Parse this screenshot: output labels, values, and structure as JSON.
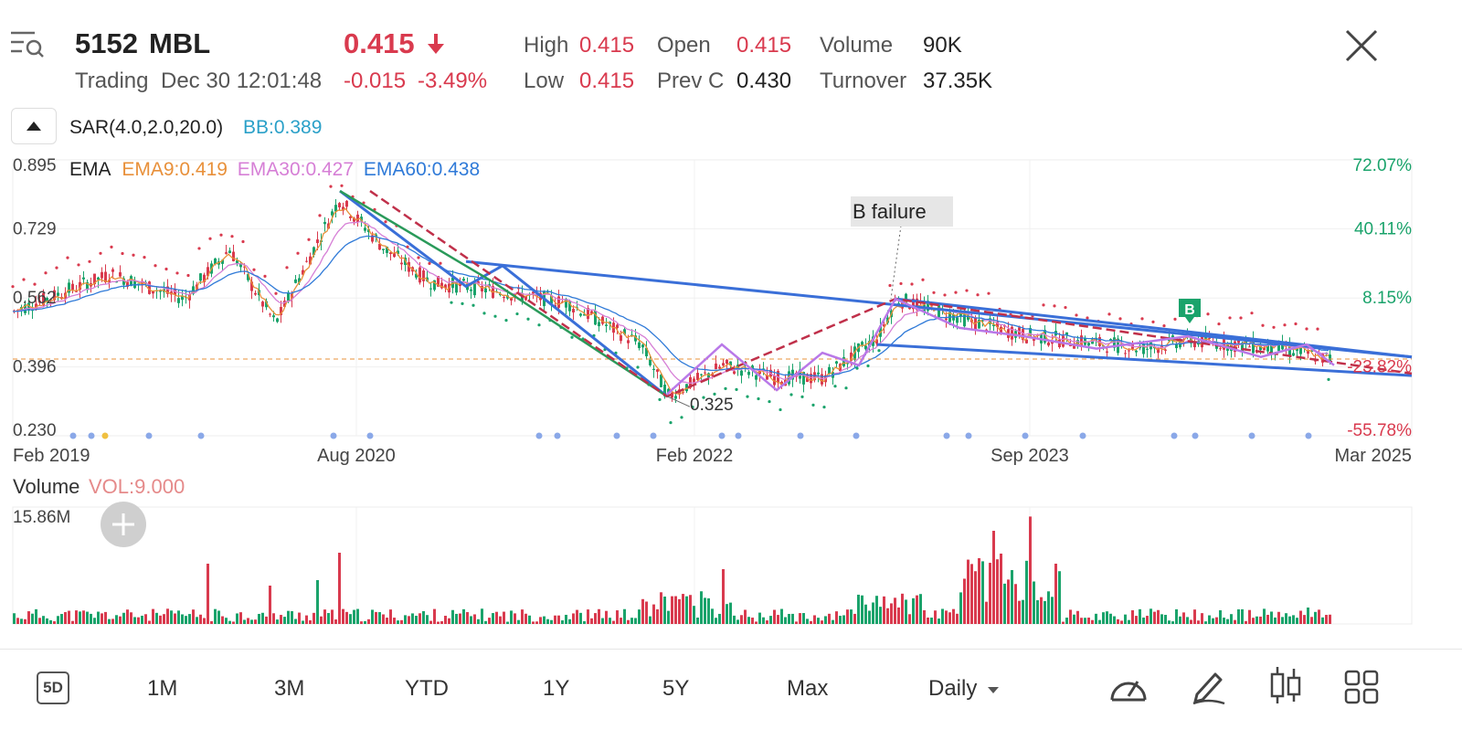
{
  "header": {
    "code": "5152",
    "name": "MBL",
    "price": "0.415",
    "status": "Trading",
    "datetime": "Dec 30 12:01:48",
    "change": "-0.015",
    "change_pct": "-3.49%",
    "high_label": "High",
    "high": "0.415",
    "low_label": "Low",
    "low": "0.415",
    "open_label": "Open",
    "open": "0.415",
    "prevc_label": "Prev C",
    "prevc": "0.430",
    "volume_label": "Volume",
    "volume": "90K",
    "turnover_label": "Turnover",
    "turnover": "37.35K"
  },
  "indicators": {
    "sar": "SAR(4.0,2.0,20.0)",
    "bb": "BB:0.389",
    "ema": "EMA",
    "ema9": "EMA9:0.419",
    "ema30": "EMA30:0.427",
    "ema60": "EMA60:0.438"
  },
  "annotations": {
    "b_failure": "B failure",
    "marker_b": "B",
    "low_point": "0.325"
  },
  "chart_data": {
    "type": "candlestick",
    "price_axis": [
      "0.895",
      "0.729",
      "0.562",
      "0.396",
      "0.230"
    ],
    "pct_axis": [
      "72.07%",
      "40.11%",
      "8.15%",
      "-23.82%",
      "-55.78%"
    ],
    "x_labels": [
      "Feb 2019",
      "Aug 2020",
      "Feb 2022",
      "Sep 2023",
      "Mar 2025"
    ],
    "ylim": [
      0.23,
      0.895
    ],
    "current_price": 0.415,
    "approx_trend": [
      {
        "date": "Feb 2019",
        "price": 0.53
      },
      {
        "date": "Aug 2020",
        "price": 0.8
      },
      {
        "date": "Feb 2022",
        "price": 0.325
      },
      {
        "date": "Nov 2022",
        "price": 0.56
      },
      {
        "date": "Sep 2023",
        "price": 0.47
      },
      {
        "date": "Mar 2025",
        "price": 0.415
      }
    ],
    "volume_title": "Volume",
    "volume_value": "VOL:9.000",
    "volume_max_label": "15.86M"
  },
  "toolbar": {
    "periods": [
      "5D",
      "1M",
      "3M",
      "YTD",
      "1Y",
      "5Y",
      "Max"
    ],
    "interval": "Daily"
  },
  "colors": {
    "up": "#1aa36b",
    "down": "#d93a4e",
    "ema9": "#e8903a",
    "ema30": "#d67fd6",
    "ema60": "#2f7ad8",
    "trendline": "#3a6fd8"
  }
}
